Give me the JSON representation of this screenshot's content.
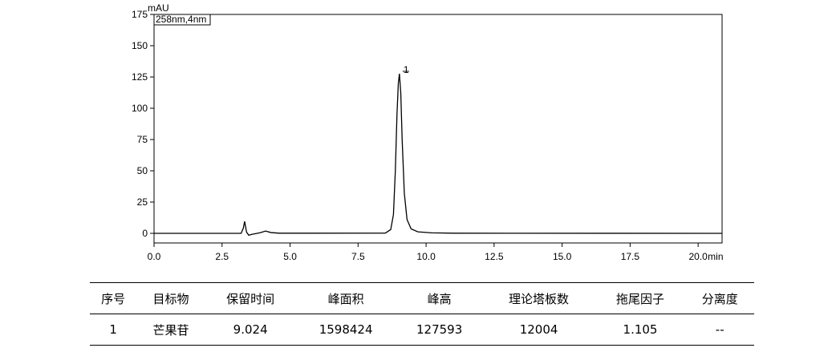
{
  "chart_data": {
    "type": "line",
    "y_unit": "mAU",
    "x_unit": "min",
    "peak_label": "1",
    "x": [
      0,
      3.2,
      3.28,
      3.33,
      3.4,
      3.48,
      3.6,
      3.9,
      4.1,
      4.3,
      4.6,
      8.5,
      8.7,
      8.8,
      8.87,
      8.93,
      8.98,
      9.02,
      9.07,
      9.12,
      9.2,
      9.3,
      9.45,
      9.7,
      10.2,
      11,
      20.88
    ],
    "series": [
      {
        "name": "258nm,4nm",
        "color": "#000000",
        "values": [
          0,
          0,
          4,
          9.5,
          1,
          -1.5,
          -0.8,
          0.5,
          1.8,
          0.6,
          0.1,
          0.2,
          3,
          15,
          50,
          95,
          120,
          127.6,
          112,
          75,
          32,
          11,
          3.5,
          1.2,
          0.4,
          0.1,
          0
        ]
      }
    ],
    "xlim": [
      0,
      20.88
    ],
    "ylim": [
      -7.7,
      175
    ],
    "xticks": [
      {
        "value": 0,
        "label": "0.0"
      },
      2.5,
      {
        "value": 5,
        "label": "5.0"
      },
      7.5,
      {
        "value": 10,
        "label": "10.0"
      },
      12.5,
      {
        "value": 15,
        "label": "15.0"
      },
      17.5,
      {
        "value": 20,
        "label": "20.0"
      }
    ],
    "yticks": [
      0,
      25,
      50,
      75,
      100,
      125,
      150,
      175
    ]
  },
  "table": {
    "header": [
      "序号",
      "目标物",
      "保留时间",
      "峰面积",
      "峰高",
      "理论塔板数",
      "拖尾因子",
      "分离度"
    ],
    "rows": [
      [
        "1",
        "芒果苷",
        "9.024",
        "1598424",
        "127593",
        "12004",
        "1.105",
        "--"
      ]
    ]
  }
}
